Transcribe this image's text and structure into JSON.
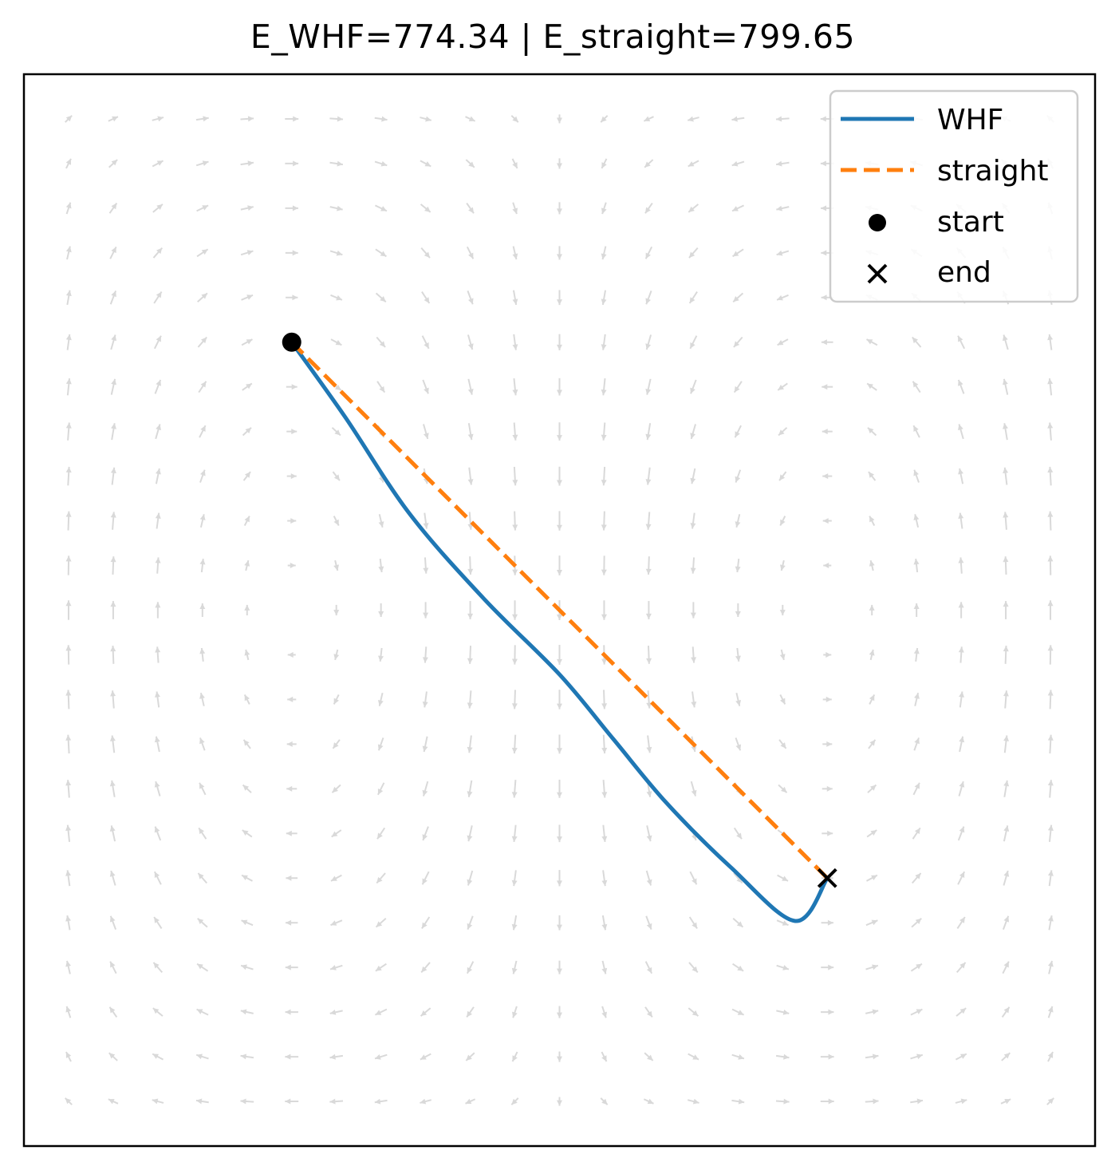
{
  "chart_data": {
    "type": "line",
    "title": "E_WHF=774.34 | E_straight=799.65",
    "xlabel": "",
    "ylabel": "",
    "xlim": [
      0,
      1
    ],
    "ylim": [
      0,
      1
    ],
    "xticks": [],
    "yticks": [],
    "grid": false,
    "legend": {
      "placement": "top-right",
      "entries": [
        "WHF",
        "straight",
        "start",
        "end"
      ]
    },
    "series": [
      {
        "name": "WHF",
        "style": "solid",
        "color": "#1f77b4",
        "points": [
          [
            0.25,
            0.75
          ],
          [
            0.3,
            0.68
          ],
          [
            0.36,
            0.59
          ],
          [
            0.43,
            0.51
          ],
          [
            0.5,
            0.44
          ],
          [
            0.55,
            0.38
          ],
          [
            0.6,
            0.32
          ],
          [
            0.66,
            0.26
          ],
          [
            0.72,
            0.21
          ],
          [
            0.75,
            0.25
          ]
        ]
      },
      {
        "name": "straight",
        "style": "dashed",
        "color": "#ff7f0e",
        "points": [
          [
            0.25,
            0.75
          ],
          [
            0.75,
            0.25
          ]
        ]
      }
    ],
    "markers": [
      {
        "name": "start",
        "symbol": "circle",
        "color": "#000000",
        "x": 0.25,
        "y": 0.75
      },
      {
        "name": "end",
        "symbol": "x",
        "color": "#000000",
        "x": 0.75,
        "y": 0.25
      }
    ],
    "background_field": {
      "type": "quiver",
      "color": "#d9d9d9",
      "grid": 23,
      "pattern": "double-gyre"
    }
  }
}
